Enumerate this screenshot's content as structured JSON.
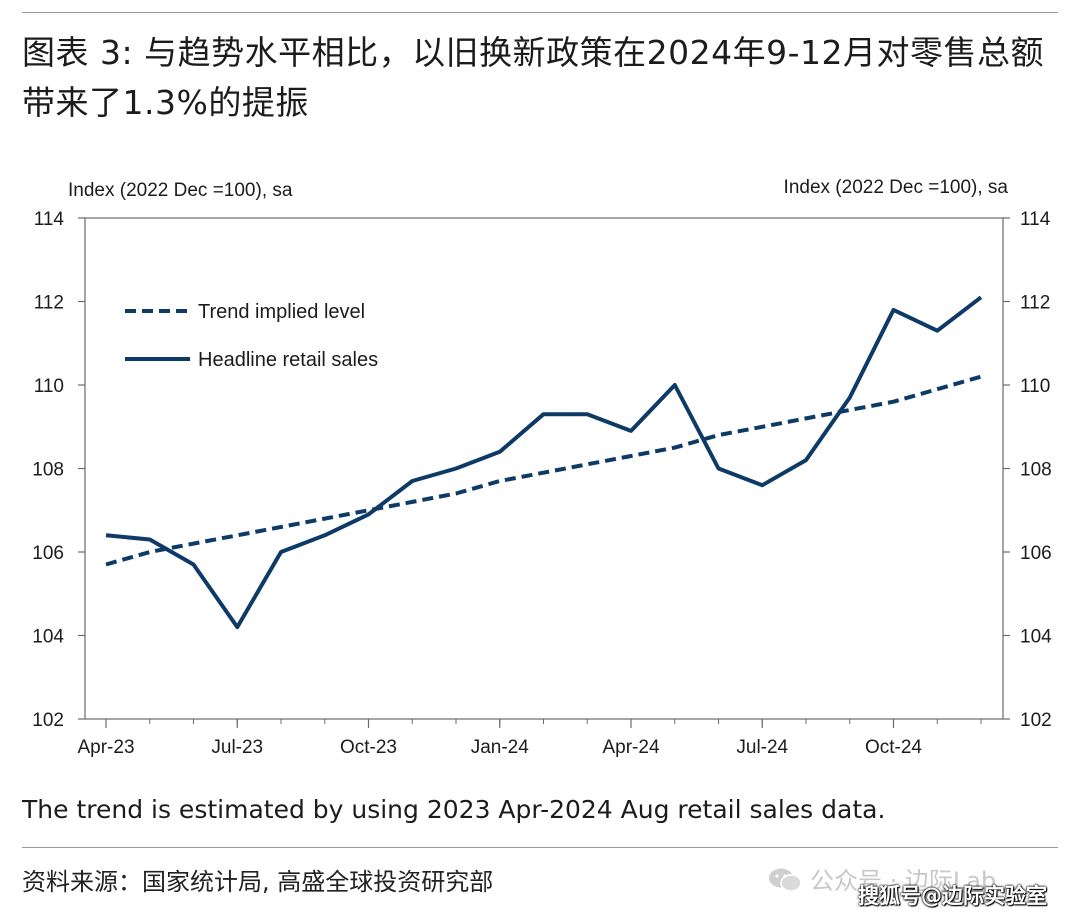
{
  "title": "图表 3: 与趋势水平相比，以旧换新政策在2024年9-12月对零售总额带来了1.3%的提振",
  "footnote": "The trend is estimated by using 2023 Apr-2024 Aug retail sales data.",
  "source": "资料来源：国家统计局, 高盛全球投资研究部",
  "watermark_1": "公众号 · 边际Lab",
  "watermark_2": "搜狐号@边际实验室",
  "colors": {
    "series": "#0d3a66",
    "axis": "#6b6b6b",
    "text": "#1c1c1c"
  },
  "chart_data": {
    "type": "line",
    "left_axis_label": "Index (2022 Dec =100), sa",
    "right_axis_label": "Index (2022 Dec =100), sa",
    "ylim": [
      102,
      114
    ],
    "yticks": [
      "102",
      "104",
      "106",
      "108",
      "110",
      "112",
      "114"
    ],
    "x": [
      "Apr-23",
      "May-23",
      "Jun-23",
      "Jul-23",
      "Aug-23",
      "Sep-23",
      "Oct-23",
      "Nov-23",
      "Dec-23",
      "Jan-24",
      "Feb-24",
      "Mar-24",
      "Apr-24",
      "May-24",
      "Jun-24",
      "Jul-24",
      "Aug-24",
      "Sep-24",
      "Oct-24",
      "Nov-24",
      "Dec-24"
    ],
    "xtick_labels": [
      "Apr-23",
      "Jul-23",
      "Oct-23",
      "Jan-24",
      "Apr-24",
      "Jul-24",
      "Oct-24"
    ],
    "legend_position": "top-left",
    "grid": false,
    "series": [
      {
        "name": "Trend implied level",
        "style": "dashed",
        "values": [
          105.7,
          106.0,
          106.2,
          106.4,
          106.6,
          106.8,
          107.0,
          107.2,
          107.4,
          107.7,
          107.9,
          108.1,
          108.3,
          108.5,
          108.8,
          109.0,
          109.2,
          109.4,
          109.6,
          109.9,
          110.2
        ]
      },
      {
        "name": "Headline retail sales",
        "style": "solid",
        "values": [
          106.4,
          106.3,
          105.7,
          104.2,
          106.0,
          106.4,
          106.9,
          107.7,
          108.0,
          108.4,
          109.3,
          109.3,
          108.9,
          110.0,
          108.0,
          107.6,
          108.2,
          109.7,
          111.8,
          111.3,
          112.1
        ]
      }
    ]
  }
}
